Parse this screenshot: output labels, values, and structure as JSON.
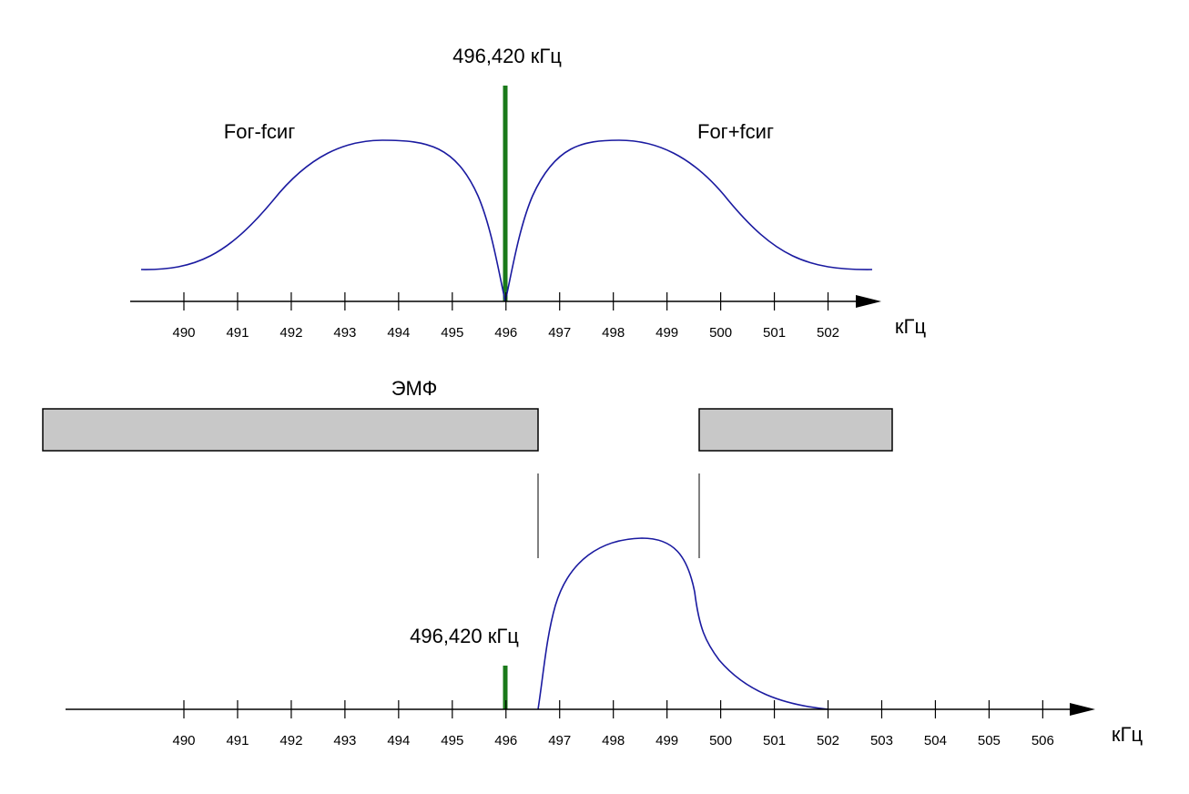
{
  "top": {
    "marker_label": "496,420 кГц",
    "left_label": "Fог-fсиг",
    "right_label": "Fог+fсиг",
    "tick_labels": [
      "490",
      "491",
      "492",
      "493",
      "494",
      "495",
      "496",
      "497",
      "498",
      "499",
      "500",
      "501",
      "502"
    ],
    "unit": "кГц"
  },
  "filter": {
    "label": "ЭМФ"
  },
  "bottom": {
    "marker_label": "496,420 кГц",
    "tick_labels": [
      "490",
      "491",
      "492",
      "493",
      "494",
      "495",
      "496",
      "497",
      "498",
      "499",
      "500",
      "501",
      "502",
      "503",
      "504",
      "505",
      "506"
    ],
    "unit": "кГц"
  }
}
